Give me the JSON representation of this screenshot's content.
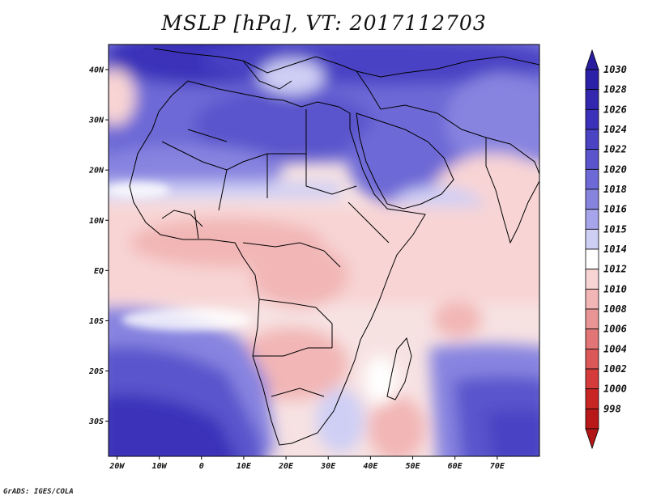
{
  "title": "MSLP [hPa], VT: 2017112703",
  "credit": "GrADS: IGES/COLA",
  "map": {
    "lon_range": [
      -22,
      80
    ],
    "lat_range": [
      -37,
      45
    ],
    "lon_ticks": [
      {
        "value": -20,
        "label": "20W"
      },
      {
        "value": -10,
        "label": "10W"
      },
      {
        "value": 0,
        "label": "0"
      },
      {
        "value": 10,
        "label": "10E"
      },
      {
        "value": 20,
        "label": "20E"
      },
      {
        "value": 30,
        "label": "30E"
      },
      {
        "value": 40,
        "label": "40E"
      },
      {
        "value": 50,
        "label": "50E"
      },
      {
        "value": 60,
        "label": "60E"
      },
      {
        "value": 70,
        "label": "70E"
      }
    ],
    "lat_ticks": [
      {
        "value": 40,
        "label": "40N"
      },
      {
        "value": 30,
        "label": "30N"
      },
      {
        "value": 20,
        "label": "20N"
      },
      {
        "value": 10,
        "label": "10N"
      },
      {
        "value": 0,
        "label": "EQ"
      },
      {
        "value": -10,
        "label": "10S"
      },
      {
        "value": -20,
        "label": "20S"
      },
      {
        "value": -30,
        "label": "30S"
      }
    ]
  },
  "colorbar": {
    "levels": [
      {
        "label": "1030",
        "color": "#2b20a8"
      },
      {
        "label": "1028",
        "color": "#3327b0"
      },
      {
        "label": "1026",
        "color": "#3b30b9"
      },
      {
        "label": "1024",
        "color": "#4a43c4"
      },
      {
        "label": "1022",
        "color": "#5a55cc"
      },
      {
        "label": "1020",
        "color": "#6d69d6"
      },
      {
        "label": "1018",
        "color": "#8784e0"
      },
      {
        "label": "1016",
        "color": "#a6a4ea"
      },
      {
        "label": "1015",
        "color": "#cfcff5"
      },
      {
        "label": "1014",
        "color": "#ffffff"
      },
      {
        "label": "1012",
        "color": "#f8d4d4"
      },
      {
        "label": "1010",
        "color": "#f2b6b6"
      },
      {
        "label": "1008",
        "color": "#ea9595"
      },
      {
        "label": "1006",
        "color": "#e27676"
      },
      {
        "label": "1004",
        "color": "#dc5858"
      },
      {
        "label": "1002",
        "color": "#d53b3b"
      },
      {
        "label": "1000",
        "color": "#c92525"
      },
      {
        "label": "998",
        "color": "#b81818"
      }
    ],
    "top_arrow_color": "#2a1d9e",
    "bottom_arrow_color": "#b31616"
  }
}
